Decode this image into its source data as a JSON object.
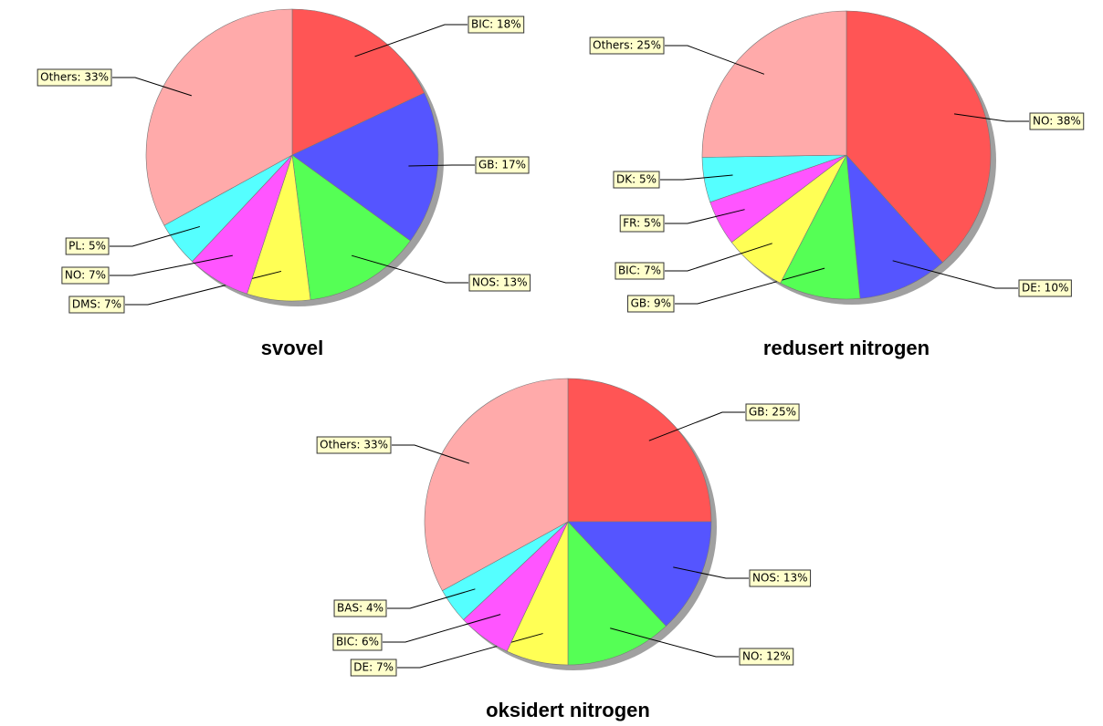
{
  "chart_data": [
    {
      "type": "pie",
      "title": "svovel",
      "values": [
        18,
        17,
        13,
        7,
        7,
        5,
        33
      ],
      "value_labels": [
        "BIC: 18%",
        "GB: 17%",
        "NOS: 13%",
        "DMS: 7%",
        "NO: 7%",
        "PL: 5%",
        "Others: 33%"
      ],
      "colors": [
        "#ff5555",
        "#5555ff",
        "#55ff55",
        "#ffff55",
        "#ff55ff",
        "#55ffff",
        "#ffaaaa"
      ]
    },
    {
      "type": "pie",
      "title": "redusert nitrogen",
      "values": [
        38,
        10,
        9,
        7,
        5,
        5,
        25
      ],
      "value_labels": [
        "NO: 38%",
        "DE: 10%",
        "GB: 9%",
        "BIC: 7%",
        "FR: 5%",
        "DK: 5%",
        "Others: 25%"
      ],
      "colors": [
        "#ff5555",
        "#5555ff",
        "#55ff55",
        "#ffff55",
        "#ff55ff",
        "#55ffff",
        "#ffaaaa"
      ]
    },
    {
      "type": "pie",
      "title": "oksidert nitrogen",
      "values": [
        25,
        13,
        12,
        7,
        6,
        4,
        33
      ],
      "value_labels": [
        "GB: 25%",
        "NOS: 13%",
        "NO: 12%",
        "DE: 7%",
        "BIC: 6%",
        "BAS: 4%",
        "Others: 33%"
      ],
      "colors": [
        "#ff5555",
        "#5555ff",
        "#55ff55",
        "#ffff55",
        "#ff55ff",
        "#55ffff",
        "#ffaaaa"
      ]
    }
  ]
}
